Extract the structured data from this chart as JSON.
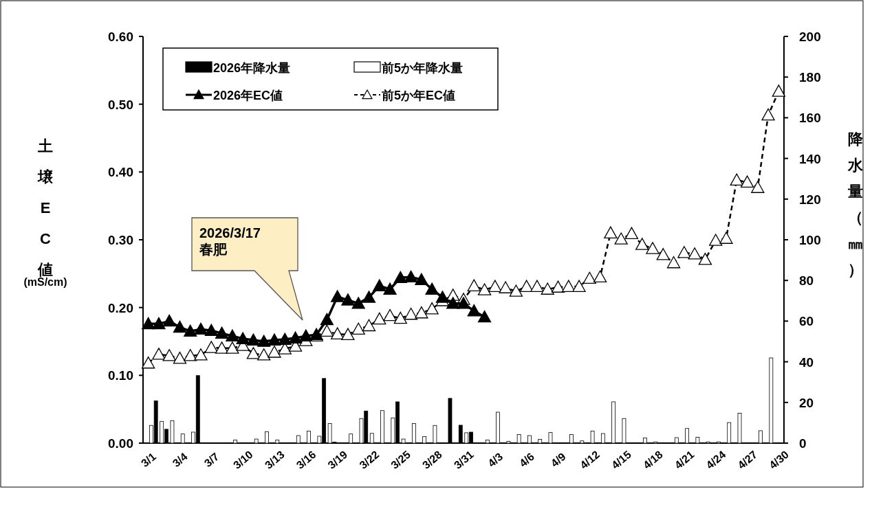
{
  "chart_data": {
    "type": "bar",
    "categories": [
      "3/1",
      null,
      null,
      "3/4",
      null,
      null,
      "3/7",
      null,
      null,
      "3/10",
      null,
      null,
      "3/13",
      null,
      null,
      "3/16",
      null,
      null,
      "3/19",
      null,
      null,
      "3/22",
      null,
      null,
      "3/25",
      null,
      null,
      "3/28",
      null,
      null,
      "3/31",
      null,
      null,
      "4/3",
      null,
      null,
      "4/6",
      null,
      null,
      "4/9",
      null,
      null,
      "4/12",
      null,
      null,
      "4/15",
      null,
      null,
      "4/18",
      null,
      null,
      "4/21",
      null,
      null,
      "4/24",
      null,
      null,
      "4/27",
      null,
      null,
      "4/30"
    ],
    "ylabel": "土壌EC値\n(mS/cm)",
    "y2label": "降水量（㎜）",
    "ylim": [
      0,
      0.6
    ],
    "yticks": [
      {
        "value": 0,
        "label": "0.00"
      },
      {
        "value": 0.1,
        "label": "0.10"
      },
      {
        "value": 0.2,
        "label": "0.20"
      },
      {
        "value": 0.3,
        "label": "0.30"
      },
      {
        "value": 0.4,
        "label": "0.40"
      },
      {
        "value": 0.5,
        "label": "0.50"
      },
      {
        "value": 0.6,
        "label": "0.60"
      }
    ],
    "y2lim": [
      0,
      200
    ],
    "y2ticks": [
      0,
      20,
      40,
      60,
      80,
      100,
      120,
      140,
      160,
      180,
      200
    ],
    "legend": "top left",
    "grid": false,
    "annotations": [
      "2026/3/17\n春肥"
    ],
    "series": [
      {
        "name": "2026年降水量",
        "axis": "y2",
        "color": "#000000",
        "values": [
          0,
          20.8,
          6.8,
          0,
          0,
          33.2,
          0,
          0,
          0,
          0,
          0,
          0,
          0,
          0,
          0,
          0,
          0,
          31.8,
          0.5,
          0,
          0,
          15.8,
          0,
          0,
          20.3,
          0,
          0,
          0,
          0,
          22.0,
          8.8,
          5.4,
          0,
          null,
          null,
          null,
          null,
          null,
          null,
          null,
          null,
          null,
          null,
          null,
          null,
          null,
          null,
          null,
          null,
          null,
          null,
          null,
          null,
          null,
          null,
          null,
          null,
          null,
          null,
          null,
          null
        ]
      },
      {
        "name": "前5か年降水量",
        "axis": "y2",
        "color": "#ffffff",
        "values": [
          8.7,
          10.7,
          11.0,
          4.5,
          5.4,
          0,
          0,
          0,
          1.5,
          0,
          2,
          5.6,
          1.5,
          0,
          3.7,
          5.9,
          3.4,
          9.6,
          0,
          4.5,
          12.1,
          4.8,
          16.0,
          12.4,
          2.0,
          9.6,
          3.2,
          8.7,
          0,
          0,
          5.1,
          0,
          1.5,
          15.2,
          0.9,
          4.2,
          3.7,
          1.9,
          5.2,
          0,
          4.2,
          1.1,
          5.9,
          4.7,
          20.3,
          12.1,
          0,
          2.5,
          0.6,
          0,
          2.7,
          7.2,
          2.9,
          0.6,
          0.6,
          10.1,
          14.7,
          0,
          6.1,
          41.9,
          0
        ]
      },
      {
        "name": "2026年EC値",
        "type": "line",
        "color": "#000000",
        "marker": "triangle",
        "line_style": "solid",
        "values": [
          0.176,
          0.176,
          0.18,
          0.171,
          0.165,
          0.168,
          0.166,
          0.162,
          0.158,
          0.154,
          0.152,
          0.15,
          0.152,
          0.153,
          0.155,
          0.158,
          0.16,
          0.182,
          0.216,
          0.211,
          0.206,
          0.215,
          0.232,
          0.227,
          0.244,
          0.245,
          0.241,
          0.227,
          0.215,
          0.206,
          0.206,
          0.195,
          0.186,
          null,
          null,
          null,
          null,
          null,
          null,
          null,
          null,
          null,
          null,
          null,
          null,
          null,
          null,
          null,
          null,
          null,
          null,
          null,
          null,
          null,
          null,
          null,
          null,
          null,
          null,
          null,
          null
        ]
      },
      {
        "name": "前5か年EC値",
        "type": "line",
        "color": "#000000",
        "marker": "triangle",
        "line_style": "dashed",
        "values": [
          0.118,
          0.131,
          0.129,
          0.125,
          0.129,
          0.13,
          0.141,
          0.14,
          0.14,
          0.144,
          0.132,
          0.13,
          0.134,
          0.139,
          0.143,
          0.151,
          0.158,
          0.165,
          0.161,
          0.16,
          0.168,
          0.173,
          0.183,
          0.188,
          0.184,
          0.19,
          0.192,
          0.198,
          0.21,
          0.218,
          0.212,
          0.232,
          0.226,
          0.231,
          0.229,
          0.224,
          0.231,
          0.231,
          0.227,
          0.23,
          0.231,
          0.231,
          0.243,
          0.245,
          0.31,
          0.301,
          0.309,
          0.293,
          0.287,
          0.278,
          0.266,
          0.281,
          0.279,
          0.271,
          0.299,
          0.302,
          0.388,
          0.385,
          0.377,
          0.484,
          0.519
        ]
      }
    ]
  }
}
